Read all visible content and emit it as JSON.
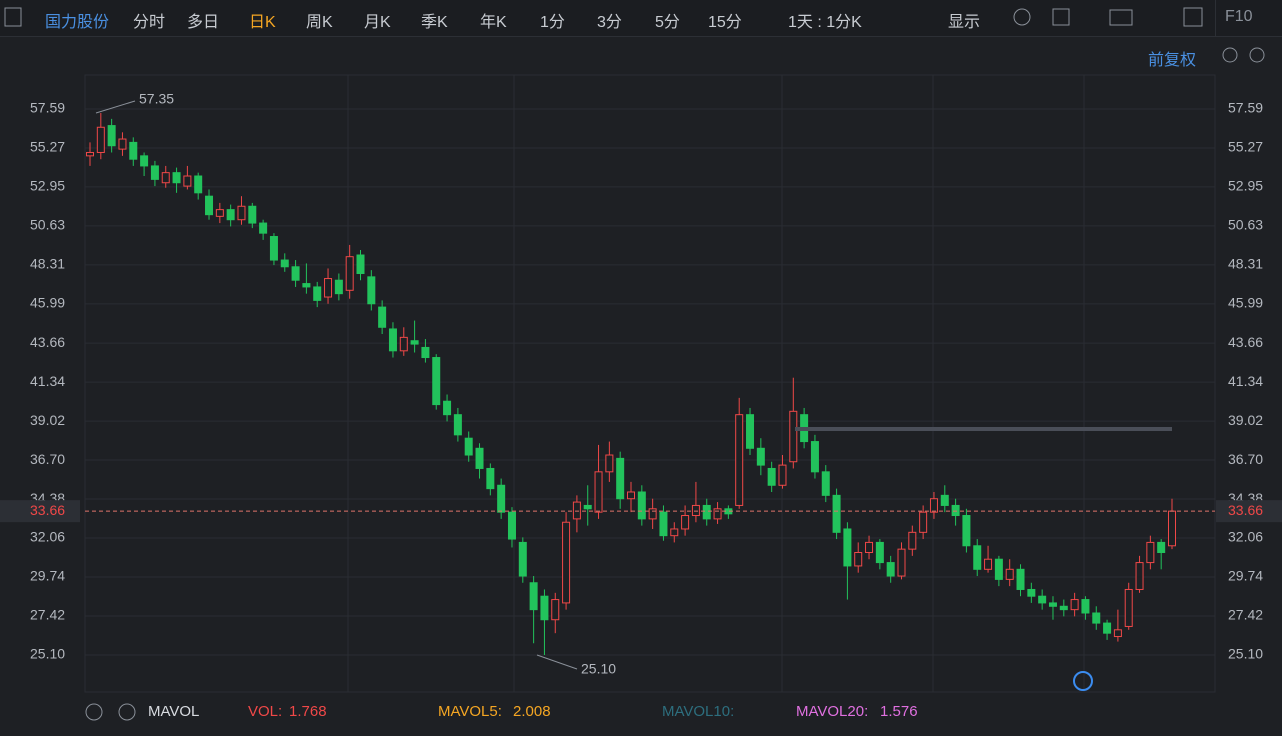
{
  "toolbar": {
    "stock": "国力股份",
    "periods": [
      "分时",
      "多日",
      "日K",
      "周K",
      "月K",
      "季K",
      "年K",
      "1分",
      "3分",
      "5分",
      "15分"
    ],
    "range": "1天 : 1分K",
    "display": "显示",
    "f10": "F10",
    "adjust": "前复权"
  },
  "indicators": {
    "name": "MAVOL",
    "vol_label": "VOL:",
    "vol": 1.768,
    "mavol5_label": "MAVOL5:",
    "mavol5": 2.008,
    "mavol10_label": "MAVOL10:",
    "mavol20_label": "MAVOL20:",
    "mavol20": 1.576
  },
  "chart_data": {
    "type": "candlestick",
    "up_color": "#f04848",
    "down_color": "#22c35c",
    "ylim": [
      22.9,
      59.61
    ],
    "yticks": [
      57.59,
      55.27,
      52.95,
      50.63,
      48.31,
      45.99,
      43.66,
      41.34,
      39.02,
      {
        "value": 36.7,
        "label": "36.70"
      },
      34.38,
      32.06,
      29.74,
      27.42,
      {
        "value": 25.1,
        "label": "25.10"
      }
    ],
    "grid": true,
    "last_price": 33.66,
    "hline": 38.55,
    "annotations": [
      {
        "value": 57.35,
        "label": "57.35"
      },
      {
        "value": 25.1,
        "label": "25.10"
      }
    ],
    "ohlc": [
      [
        54.8,
        55.6,
        54.2,
        55.0
      ],
      [
        55.0,
        57.35,
        54.6,
        56.5
      ],
      [
        56.6,
        57.0,
        55.0,
        55.4
      ],
      [
        55.2,
        56.2,
        54.8,
        55.8
      ],
      [
        55.6,
        55.9,
        54.2,
        54.6
      ],
      [
        54.8,
        55.0,
        53.6,
        54.2
      ],
      [
        54.2,
        54.5,
        53.0,
        53.4
      ],
      [
        53.2,
        54.2,
        52.9,
        53.8
      ],
      [
        53.8,
        54.1,
        52.6,
        53.2
      ],
      [
        53.0,
        54.2,
        52.8,
        53.6
      ],
      [
        53.6,
        53.8,
        52.2,
        52.6
      ],
      [
        52.4,
        52.8,
        51.0,
        51.3
      ],
      [
        51.2,
        52.0,
        50.8,
        51.6
      ],
      [
        51.6,
        51.9,
        50.6,
        51.0
      ],
      [
        51.0,
        52.4,
        50.7,
        51.8
      ],
      [
        51.8,
        52.0,
        50.5,
        50.8
      ],
      [
        50.8,
        51.0,
        49.8,
        50.2
      ],
      [
        50.0,
        50.2,
        48.3,
        48.6
      ],
      [
        48.6,
        49.0,
        47.9,
        48.2
      ],
      [
        48.2,
        48.6,
        47.0,
        47.4
      ],
      [
        47.2,
        48.4,
        46.6,
        47.0
      ],
      [
        47.0,
        47.3,
        45.8,
        46.2
      ],
      [
        46.4,
        48.1,
        46.0,
        47.5
      ],
      [
        47.4,
        47.8,
        46.2,
        46.6
      ],
      [
        46.8,
        49.5,
        46.3,
        48.8
      ],
      [
        48.9,
        49.2,
        47.4,
        47.8
      ],
      [
        47.6,
        48.0,
        45.6,
        46.0
      ],
      [
        45.8,
        46.2,
        44.2,
        44.6
      ],
      [
        44.5,
        44.9,
        42.8,
        43.2
      ],
      [
        43.2,
        44.6,
        42.9,
        44.0
      ],
      [
        43.8,
        45.0,
        43.1,
        43.6
      ],
      [
        43.4,
        43.9,
        42.5,
        42.8
      ],
      [
        42.8,
        43.0,
        39.7,
        40.0
      ],
      [
        40.2,
        40.6,
        39.0,
        39.4
      ],
      [
        39.4,
        39.8,
        37.8,
        38.2
      ],
      [
        38.0,
        38.4,
        36.6,
        37.0
      ],
      [
        37.4,
        37.7,
        35.6,
        36.2
      ],
      [
        36.2,
        36.5,
        34.6,
        35.0
      ],
      [
        35.2,
        35.6,
        33.2,
        33.6
      ],
      [
        33.6,
        33.9,
        31.5,
        32.0
      ],
      [
        31.8,
        32.1,
        29.4,
        29.8
      ],
      [
        29.4,
        29.8,
        25.8,
        27.8
      ],
      [
        28.6,
        29.0,
        25.1,
        27.2
      ],
      [
        27.2,
        28.8,
        26.4,
        28.4
      ],
      [
        28.2,
        33.6,
        27.8,
        33.0
      ],
      [
        33.2,
        34.6,
        32.4,
        34.2
      ],
      [
        34.0,
        35.2,
        32.8,
        33.8
      ],
      [
        33.6,
        37.6,
        33.2,
        36.0
      ],
      [
        36.0,
        37.8,
        35.4,
        37.0
      ],
      [
        36.8,
        37.2,
        33.8,
        34.4
      ],
      [
        34.4,
        35.4,
        33.6,
        34.8
      ],
      [
        34.8,
        35.2,
        32.8,
        33.2
      ],
      [
        33.2,
        34.4,
        32.6,
        33.8
      ],
      [
        33.6,
        34.0,
        31.9,
        32.2
      ],
      [
        32.2,
        33.0,
        31.8,
        32.6
      ],
      [
        32.6,
        34.0,
        32.2,
        33.4
      ],
      [
        33.4,
        35.4,
        33.0,
        34.0
      ],
      [
        34.0,
        34.4,
        32.8,
        33.2
      ],
      [
        33.2,
        34.2,
        32.9,
        33.8
      ],
      [
        33.8,
        34.0,
        33.2,
        33.5
      ],
      [
        34.0,
        40.4,
        33.8,
        39.4
      ],
      [
        39.4,
        39.8,
        37.0,
        37.4
      ],
      [
        37.4,
        38.0,
        35.8,
        36.4
      ],
      [
        36.2,
        36.6,
        34.8,
        35.2
      ],
      [
        35.2,
        37.0,
        35.0,
        36.4
      ],
      [
        36.6,
        41.6,
        36.2,
        39.6
      ],
      [
        39.4,
        39.8,
        37.4,
        37.8
      ],
      [
        37.8,
        38.2,
        35.6,
        36.0
      ],
      [
        36.0,
        36.4,
        34.2,
        34.6
      ],
      [
        34.6,
        35.0,
        32.0,
        32.4
      ],
      [
        32.6,
        33.0,
        28.4,
        30.4
      ],
      [
        30.4,
        31.8,
        30.0,
        31.2
      ],
      [
        31.2,
        32.2,
        30.8,
        31.8
      ],
      [
        31.8,
        32.0,
        30.2,
        30.6
      ],
      [
        30.6,
        31.0,
        29.4,
        29.8
      ],
      [
        29.8,
        31.8,
        29.6,
        31.4
      ],
      [
        31.4,
        32.8,
        31.0,
        32.4
      ],
      [
        32.4,
        34.0,
        32.0,
        33.6
      ],
      [
        33.6,
        34.8,
        33.2,
        34.4
      ],
      [
        34.6,
        35.2,
        33.6,
        34.0
      ],
      [
        34.0,
        34.4,
        32.8,
        33.4
      ],
      [
        33.4,
        33.8,
        31.2,
        31.6
      ],
      [
        31.6,
        32.0,
        29.8,
        30.2
      ],
      [
        30.2,
        31.6,
        30.0,
        30.8
      ],
      [
        30.8,
        31.0,
        29.2,
        29.6
      ],
      [
        29.6,
        30.8,
        29.2,
        30.2
      ],
      [
        30.2,
        30.5,
        28.6,
        29.0
      ],
      [
        29.0,
        29.4,
        28.2,
        28.6
      ],
      [
        28.6,
        29.0,
        27.8,
        28.2
      ],
      [
        28.2,
        28.6,
        27.2,
        28.0
      ],
      [
        28.0,
        28.4,
        27.4,
        27.8
      ],
      [
        27.8,
        28.8,
        27.4,
        28.4
      ],
      [
        28.4,
        28.6,
        27.2,
        27.6
      ],
      [
        27.6,
        28.0,
        26.6,
        27.0
      ],
      [
        27.0,
        27.2,
        26.0,
        26.4
      ],
      [
        26.2,
        27.8,
        25.9,
        26.6
      ],
      [
        26.8,
        29.4,
        26.6,
        29.0
      ],
      [
        29.0,
        31.0,
        28.8,
        30.6
      ],
      [
        30.6,
        32.2,
        30.2,
        31.8
      ],
      [
        31.8,
        32.0,
        30.2,
        31.2
      ],
      [
        31.6,
        34.4,
        31.4,
        33.66
      ]
    ]
  }
}
